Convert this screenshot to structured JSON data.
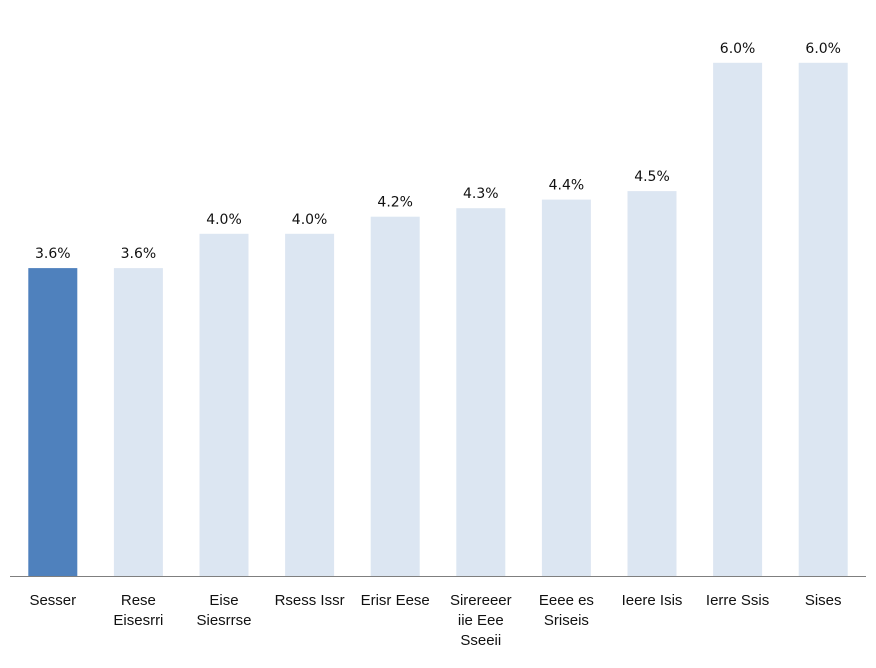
{
  "chart_data": {
    "type": "bar",
    "title": "",
    "xlabel": "",
    "ylabel": "",
    "categories": [
      "Sesser",
      "Rese\nEisesrri",
      "Eise\nSiesrrse",
      "Rsess Issr",
      "Erisr Eese",
      "Sirereeer\niie Eee\nSseeii",
      "Eeee es\nSriseis",
      "Ieere Isis",
      "Ierre Ssis",
      "Sises"
    ],
    "values": [
      3.6,
      3.6,
      4.0,
      4.0,
      4.2,
      4.3,
      4.4,
      4.5,
      6.0,
      6.0
    ],
    "value_labels": [
      "3.6%",
      "3.6%",
      "4.0%",
      "4.0%",
      "4.2%",
      "4.3%",
      "4.4%",
      "4.5%",
      "6.0%",
      "6.0%"
    ],
    "ylim": [
      0,
      6.5
    ],
    "grid": false,
    "legend": "none",
    "highlight_index": 0,
    "colors": {
      "highlight": "#4f81bd",
      "bar": "#dce6f2",
      "axis": "#7f7f7f",
      "text": "#111111"
    }
  }
}
